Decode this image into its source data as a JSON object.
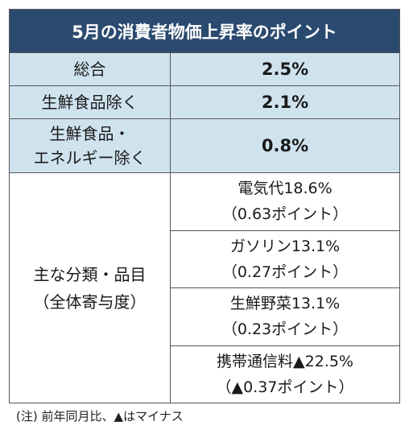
{
  "title": "5月の消費者物価上昇率のポイント",
  "rows": [
    {
      "label": "総合",
      "value": "2.5%"
    },
    {
      "label": "生鮮食品除く",
      "value": "2.1%"
    },
    {
      "label_line1": "生鮮食品・",
      "label_line2": "エネルギー除く",
      "value": "0.8%"
    }
  ],
  "breakdown": {
    "label_line1": "主な分類・品目",
    "label_line2": "（全体寄与度）",
    "items": [
      {
        "name": "電気代18.6%",
        "contribution": "（0.63ポイント）"
      },
      {
        "name": "ガソリン13.1%",
        "contribution": "（0.27ポイント）"
      },
      {
        "name": "生鮮野菜13.1%",
        "contribution": "（0.23ポイント）"
      },
      {
        "name": "携帯通信料▲22.5%",
        "contribution": "（▲0.37ポイント）"
      }
    ]
  },
  "note": "(注) 前年同月比、▲はマイナス"
}
